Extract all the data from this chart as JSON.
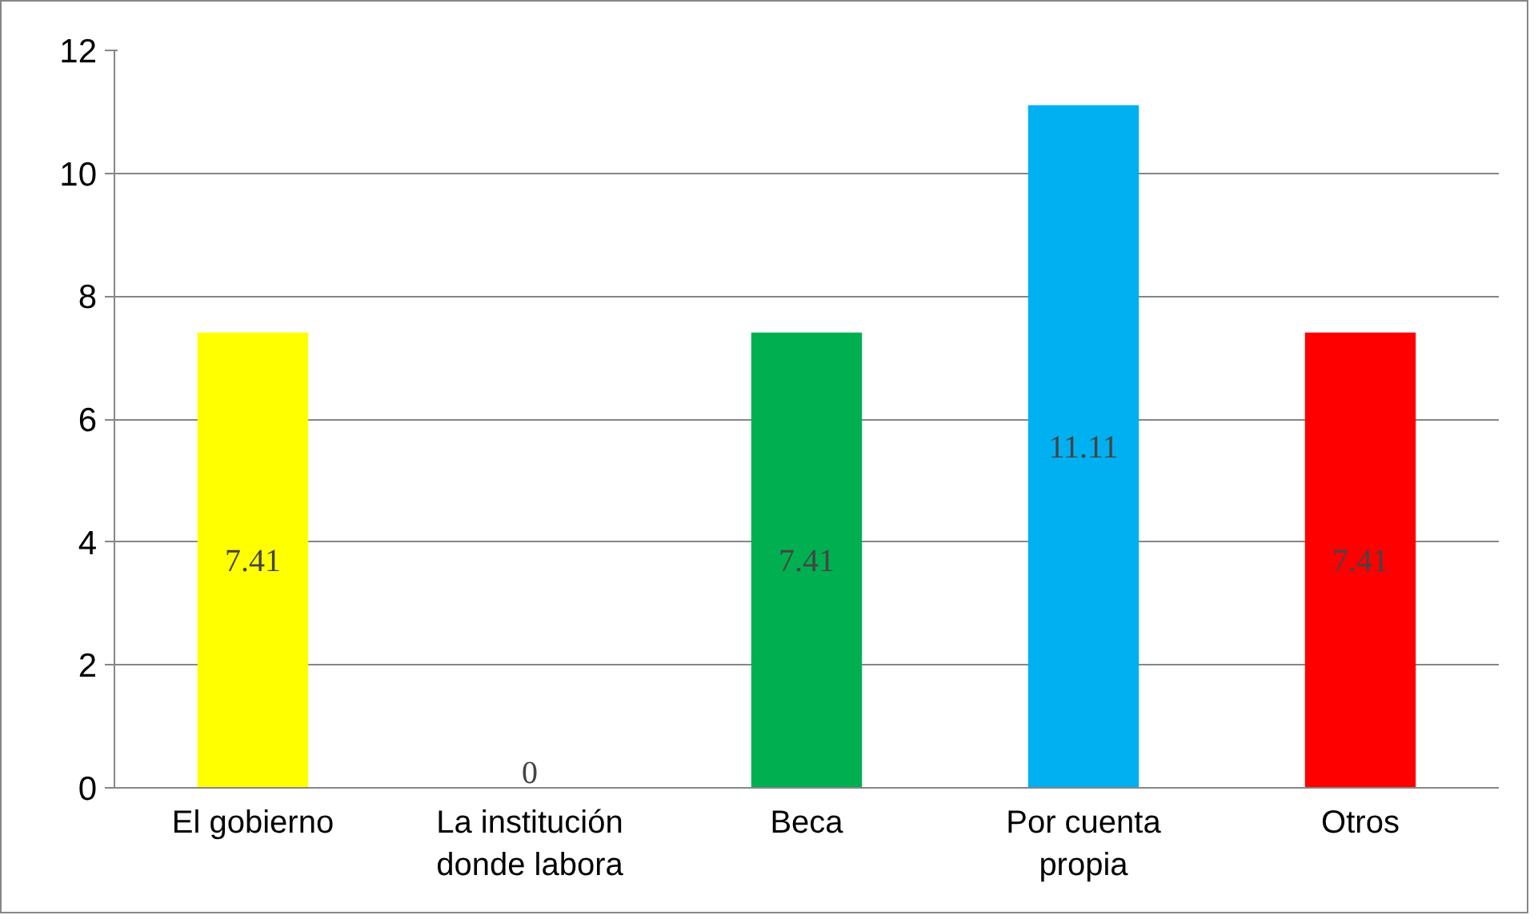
{
  "chart_data": {
    "type": "bar",
    "categories": [
      "El gobierno",
      "La institución\ndonde labora",
      "Beca",
      "Por cuenta\npropia",
      "Otros"
    ],
    "values": [
      7.41,
      0,
      7.41,
      11.11,
      7.41
    ],
    "colors": [
      "#ffff00",
      "#7f7f7f",
      "#00b050",
      "#00b0f0",
      "#ff0000"
    ],
    "ylim": [
      0,
      12
    ],
    "yticks": [
      0,
      2,
      4,
      6,
      8,
      10,
      12
    ],
    "grid": "y",
    "data_labels": true
  }
}
